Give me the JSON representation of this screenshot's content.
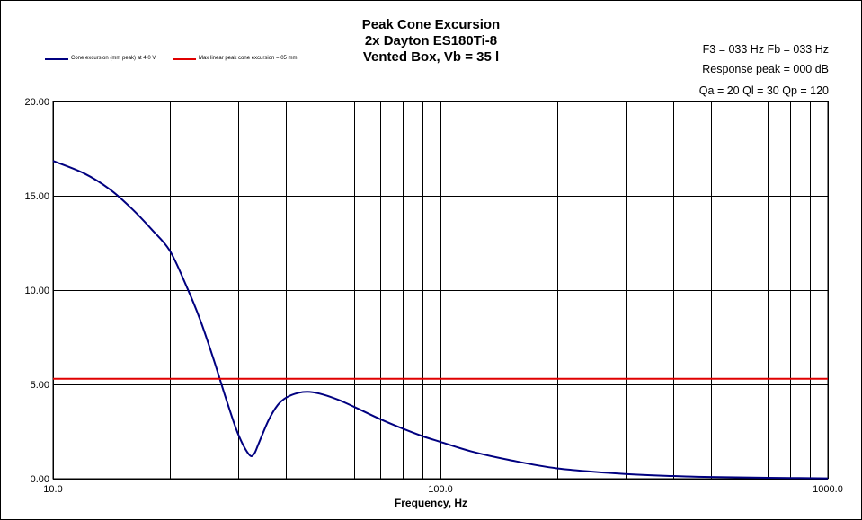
{
  "chart_data": {
    "type": "line",
    "title": [
      "Peak Cone Excursion",
      "2x Dayton ES180Ti-8",
      "Vented Box, Vb = 35 l"
    ],
    "annotations": [
      "F3 = 033  Hz   Fb = 033  Hz",
      "Response peak = 000  dB",
      "Qa = 20   Ql = 30   Qp = 120"
    ],
    "xlabel": "Frequency, Hz",
    "ylabel": "",
    "xscale": "log",
    "xlim": [
      10,
      1000
    ],
    "ylim": [
      0,
      20
    ],
    "x_tick_labels": [
      {
        "value": 10,
        "label": "10.0"
      },
      {
        "value": 100,
        "label": "100.0"
      },
      {
        "value": 1000,
        "label": "1000.0"
      }
    ],
    "y_tick_labels": [
      {
        "value": 0,
        "label": "0.00"
      },
      {
        "value": 5,
        "label": "5.00"
      },
      {
        "value": 10,
        "label": "10.00"
      },
      {
        "value": 15,
        "label": "15.00"
      },
      {
        "value": 20,
        "label": "20.00"
      }
    ],
    "x_gridlines": [
      10,
      20,
      30,
      40,
      50,
      60,
      70,
      80,
      90,
      100,
      200,
      300,
      400,
      500,
      600,
      700,
      800,
      900,
      1000
    ],
    "y_gridlines": [
      0,
      5,
      10,
      15,
      20
    ],
    "grid": true,
    "legend_position": "top-left",
    "series": [
      {
        "name": "Cone excursion (mm peak) at 4.0 V",
        "color": "#000080",
        "x": [
          10,
          12,
          14,
          16,
          18,
          20,
          22,
          24,
          26,
          28,
          30,
          32,
          33,
          34,
          36,
          38,
          40,
          43,
          46,
          50,
          55,
          60,
          70,
          80,
          90,
          100,
          120,
          150,
          200,
          300,
          400,
          500,
          700,
          1000
        ],
        "y": [
          16.85,
          16.2,
          15.35,
          14.3,
          13.2,
          12.1,
          10.3,
          8.4,
          6.3,
          4.2,
          2.4,
          1.3,
          1.3,
          1.9,
          3.1,
          3.9,
          4.3,
          4.55,
          4.6,
          4.45,
          4.15,
          3.8,
          3.15,
          2.65,
          2.25,
          1.95,
          1.45,
          1.0,
          0.55,
          0.25,
          0.14,
          0.09,
          0.05,
          0.02
        ]
      },
      {
        "name": "Max linear peak cone excursion = 05 mm",
        "color": "#e00000",
        "x": [
          10,
          1000
        ],
        "y": [
          5.3,
          5.3
        ]
      }
    ]
  }
}
